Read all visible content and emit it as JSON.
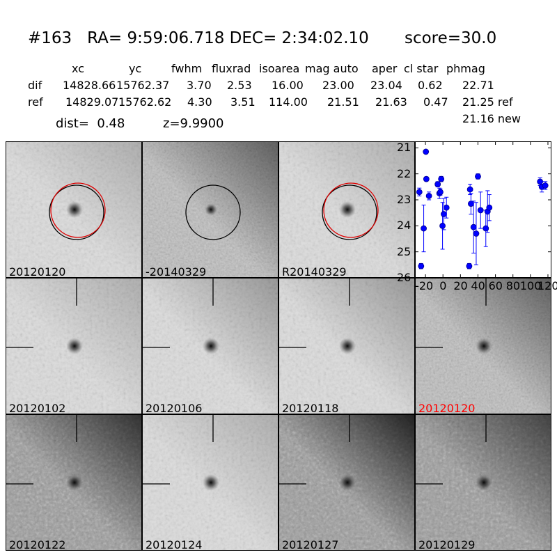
{
  "header": {
    "title": "#163   RA= 9:59:06.718 DEC= 2:34:02.10       score=30.0",
    "columns": [
      "xc",
      "yc",
      "fwhm",
      "fluxrad",
      "isoarea",
      "mag auto",
      "aper",
      "cl star",
      "phmag"
    ],
    "dif_label": "dif",
    "ref_label": "ref",
    "dif_values": [
      "14828.66",
      "15762.37",
      "3.70",
      "2.53",
      "16.00",
      "23.00",
      "23.04",
      "0.62",
      "22.71"
    ],
    "ref_values": [
      "14829.07",
      "15762.62",
      "4.30",
      "3.51",
      "114.00",
      "21.51",
      "21.63",
      "0.47",
      "21.25 ref"
    ],
    "new_phmag": "21.16 new",
    "dist_text": "dist=  0.48",
    "z_text": "z=9.9900"
  },
  "panels": [
    {
      "label": "20120120",
      "label_color": "#000000"
    },
    {
      "label": "-20140329",
      "label_color": "#000000"
    },
    {
      "label": "R20140329",
      "label_color": "#000000"
    },
    {
      "label": "20120102",
      "label_color": "#000000"
    },
    {
      "label": "20120106",
      "label_color": "#000000"
    },
    {
      "label": "20120118",
      "label_color": "#000000"
    },
    {
      "label": "20120120",
      "label_color": "#ff0000"
    },
    {
      "label": "20120122",
      "label_color": "#000000"
    },
    {
      "label": "20120124",
      "label_color": "#000000"
    },
    {
      "label": "20120127",
      "label_color": "#000000"
    },
    {
      "label": "20120129",
      "label_color": "#000000"
    }
  ],
  "chart_data": {
    "type": "scatter",
    "title": "",
    "xlabel": "",
    "ylabel": "",
    "xlim": [
      -32,
      124
    ],
    "ylim": [
      26,
      20.75
    ],
    "y_inverted": true,
    "xticks": [
      -20,
      0,
      20,
      40,
      60,
      80,
      100,
      120
    ],
    "xtick_labels": [
      "-20",
      "0",
      "20",
      "40",
      "60",
      "80",
      "100",
      "120"
    ],
    "yticks": [
      21,
      22,
      23,
      24,
      25,
      26
    ],
    "ytick_labels": [
      "21",
      "22",
      "23",
      "24",
      "25",
      "26"
    ],
    "marker_color": "#0000ff",
    "points": [
      {
        "x": -27,
        "y": 22.7,
        "err": 0.15
      },
      {
        "x": -25,
        "y": 25.55,
        "err": 0.1
      },
      {
        "x": -22,
        "y": 24.1,
        "err": 0.9
      },
      {
        "x": -19.5,
        "y": 21.15,
        "err": 0.05
      },
      {
        "x": -19,
        "y": 22.2,
        "err": 0.08
      },
      {
        "x": -16,
        "y": 22.85,
        "err": 0.15
      },
      {
        "x": -6,
        "y": 22.4,
        "err": 0.1
      },
      {
        "x": -4,
        "y": 22.75,
        "err": 0.2
      },
      {
        "x": -3,
        "y": 22.7,
        "err": 0.12
      },
      {
        "x": -2,
        "y": 22.2,
        "err": 0.1
      },
      {
        "x": -0.5,
        "y": 24.0,
        "err": 0.9
      },
      {
        "x": 1,
        "y": 23.55,
        "err": 0.6
      },
      {
        "x": 4,
        "y": 23.3,
        "err": 0.4
      },
      {
        "x": 30,
        "y": 25.55,
        "err": 0.1
      },
      {
        "x": 31,
        "y": 22.6,
        "err": 0.2
      },
      {
        "x": 32,
        "y": 23.15,
        "err": 0.4
      },
      {
        "x": 35,
        "y": 24.05,
        "err": 1.0
      },
      {
        "x": 38,
        "y": 24.3,
        "err": 1.2
      },
      {
        "x": 40,
        "y": 22.1,
        "err": 0.1
      },
      {
        "x": 43,
        "y": 23.4,
        "err": 0.7
      },
      {
        "x": 49,
        "y": 24.1,
        "err": 0.7
      },
      {
        "x": 51,
        "y": 23.45,
        "err": 0.8
      },
      {
        "x": 53,
        "y": 23.3,
        "err": 0.5
      },
      {
        "x": 111,
        "y": 22.3,
        "err": 0.15
      },
      {
        "x": 113,
        "y": 22.5,
        "err": 0.2
      },
      {
        "x": 117,
        "y": 22.45,
        "err": 0.15
      }
    ]
  }
}
